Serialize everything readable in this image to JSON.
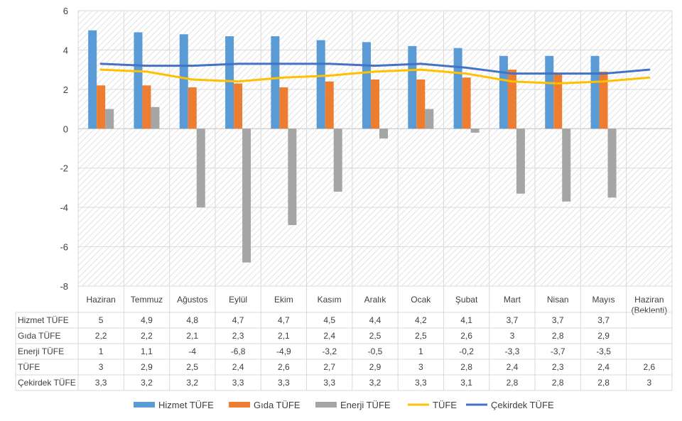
{
  "chart_data": {
    "type": "bar",
    "categories": [
      "Haziran",
      "Temmuz",
      "Ağustos",
      "Eylül",
      "Ekim",
      "Kasım",
      "Aralık",
      "Ocak",
      "Şubat",
      "Mart",
      "Nisan",
      "Mayıs",
      "Haziran (Beklenti)"
    ],
    "series": [
      {
        "name": "Hizmet TÜFE",
        "kind": "bar",
        "color": "#5B9BD5",
        "values": [
          5,
          4.9,
          4.8,
          4.7,
          4.7,
          4.5,
          4.4,
          4.2,
          4.1,
          3.7,
          3.7,
          3.7,
          null
        ],
        "labels": [
          "5",
          "4,9",
          "4,8",
          "4,7",
          "4,7",
          "4,5",
          "4,4",
          "4,2",
          "4,1",
          "3,7",
          "3,7",
          "3,7",
          ""
        ]
      },
      {
        "name": "Gıda TÜFE",
        "kind": "bar",
        "color": "#ED7D31",
        "values": [
          2.2,
          2.2,
          2.1,
          2.3,
          2.1,
          2.4,
          2.5,
          2.5,
          2.6,
          3,
          2.8,
          2.9,
          null
        ],
        "labels": [
          "2,2",
          "2,2",
          "2,1",
          "2,3",
          "2,1",
          "2,4",
          "2,5",
          "2,5",
          "2,6",
          "3",
          "2,8",
          "2,9",
          ""
        ]
      },
      {
        "name": "Enerji TÜFE",
        "kind": "bar",
        "color": "#A5A5A5",
        "values": [
          1,
          1.1,
          -4,
          -6.8,
          -4.9,
          -3.2,
          -0.5,
          1,
          -0.2,
          -3.3,
          -3.7,
          -3.5,
          null
        ],
        "labels": [
          "1",
          "1,1",
          "-4",
          "-6,8",
          "-4,9",
          "-3,2",
          "-0,5",
          "1",
          "-0,2",
          "-3,3",
          "-3,7",
          "-3,5",
          ""
        ]
      },
      {
        "name": "TÜFE",
        "kind": "line",
        "color": "#FFC000",
        "values": [
          3,
          2.9,
          2.5,
          2.4,
          2.6,
          2.7,
          2.9,
          3,
          2.8,
          2.4,
          2.3,
          2.4,
          2.6
        ],
        "labels": [
          "3",
          "2,9",
          "2,5",
          "2,4",
          "2,6",
          "2,7",
          "2,9",
          "3",
          "2,8",
          "2,4",
          "2,3",
          "2,4",
          "2,6"
        ]
      },
      {
        "name": "Çekirdek TÜFE",
        "kind": "line",
        "color": "#4472C4",
        "values": [
          3.3,
          3.2,
          3.2,
          3.3,
          3.3,
          3.3,
          3.2,
          3.3,
          3.1,
          2.8,
          2.8,
          2.8,
          3
        ],
        "labels": [
          "3,3",
          "3,2",
          "3,2",
          "3,3",
          "3,3",
          "3,3",
          "3,2",
          "3,3",
          "3,1",
          "2,8",
          "2,8",
          "2,8",
          "3"
        ]
      }
    ],
    "ylim": [
      -8,
      6
    ],
    "yticks": [
      -8,
      -6,
      -4,
      -2,
      0,
      2,
      4,
      6
    ],
    "grid": true,
    "data_table": true,
    "legend": "bottom",
    "title": "",
    "xlabel": "",
    "ylabel": ""
  }
}
